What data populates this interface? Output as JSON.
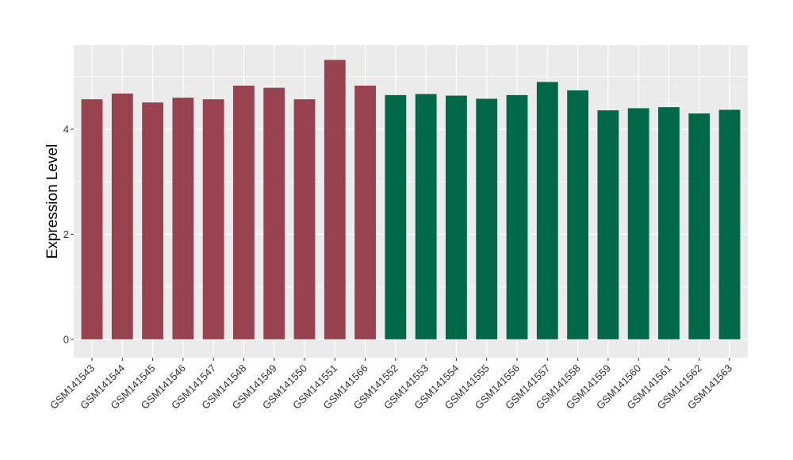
{
  "chart_data": {
    "type": "bar",
    "title": "",
    "xlabel": "",
    "ylabel": "Expression Level",
    "ylim": [
      -0.35,
      5.6
    ],
    "yticks": [
      0,
      2,
      4
    ],
    "grid": true,
    "legend": "none",
    "panel_background": "#EBEBEB",
    "grid_color": "#FFFFFF",
    "categories": [
      "GSM141543",
      "GSM141544",
      "GSM141545",
      "GSM141546",
      "GSM141547",
      "GSM141548",
      "GSM141549",
      "GSM141550",
      "GSM141551",
      "GSM141566",
      "GSM141552",
      "GSM141553",
      "GSM141554",
      "GSM141555",
      "GSM141556",
      "GSM141557",
      "GSM141558",
      "GSM141559",
      "GSM141560",
      "GSM141561",
      "GSM141562",
      "GSM141563"
    ],
    "values": [
      4.57,
      4.68,
      4.51,
      4.6,
      4.57,
      4.83,
      4.79,
      4.57,
      5.32,
      4.83,
      4.65,
      4.67,
      4.64,
      4.58,
      4.65,
      4.9,
      4.74,
      4.36,
      4.4,
      4.42,
      4.3,
      4.37
    ],
    "bar_colors": [
      "#99424F",
      "#99424F",
      "#99424F",
      "#99424F",
      "#99424F",
      "#99424F",
      "#99424F",
      "#99424F",
      "#99424F",
      "#99424F",
      "#006847",
      "#006847",
      "#006847",
      "#006847",
      "#006847",
      "#006847",
      "#006847",
      "#006847",
      "#006847",
      "#006847",
      "#006847",
      "#006847"
    ]
  }
}
